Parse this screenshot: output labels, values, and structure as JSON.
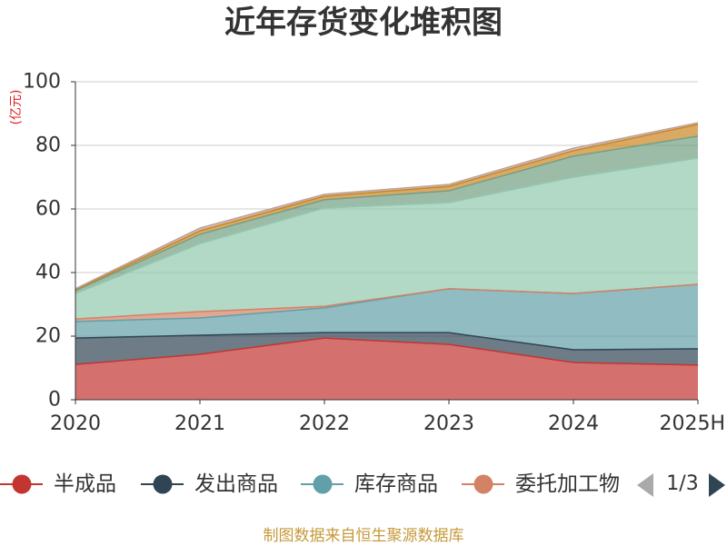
{
  "chart_data": {
    "type": "area",
    "stacked": true,
    "title": "近年存货变化堆积图",
    "ylabel": "(亿元)",
    "categories": [
      "2020",
      "2021",
      "2022",
      "2023",
      "2024",
      "2025H"
    ],
    "ylim": [
      0,
      100
    ],
    "yticks": [
      0,
      20,
      40,
      60,
      80,
      100
    ],
    "grid": true,
    "legend_position": "bottom",
    "series": [
      {
        "name": "半成品",
        "color": "#c23531",
        "values": [
          11.1,
          14.3,
          19.4,
          17.4,
          11.7,
          10.9
        ]
      },
      {
        "name": "发出商品",
        "color": "#2f4554",
        "values": [
          8.3,
          6.0,
          1.7,
          3.7,
          4.0,
          5.1
        ]
      },
      {
        "name": "库存商品",
        "color": "#61a0a8",
        "values": [
          5.2,
          5.4,
          7.8,
          13.8,
          17.7,
          20.3
        ]
      },
      {
        "name": "委托加工物",
        "color": "#d48265",
        "values": [
          0.8,
          2.0,
          0.5,
          0.0,
          0.0,
          0.0
        ]
      },
      {
        "color": "#91c7ae",
        "values": [
          8.0,
          21.4,
          30.9,
          27.1,
          36.6,
          39.7
        ]
      },
      {
        "color": "#749f83",
        "values": [
          0.9,
          2.9,
          2.6,
          3.7,
          6.6,
          6.9
        ]
      },
      {
        "color": "#ca8622",
        "values": [
          0.3,
          1.1,
          1.1,
          1.4,
          1.7,
          3.7
        ]
      },
      {
        "color": "#bda29a",
        "values": [
          0.3,
          0.9,
          0.6,
          0.6,
          0.8,
          0.5
        ]
      }
    ]
  },
  "legend": {
    "page": "1/3",
    "prev_icon": "triangle-left-icon",
    "next_icon": "triangle-right-icon"
  },
  "footer": {
    "source": "制图数据来自恒生聚源数据库"
  },
  "colors": {
    "title": "#333333",
    "unit_label": "#e02020",
    "footer": "#c59a3a",
    "grid": "#cccccc",
    "axis": "#333333",
    "pager_disabled": "#aaaaaa",
    "pager_active": "#2f4554"
  }
}
